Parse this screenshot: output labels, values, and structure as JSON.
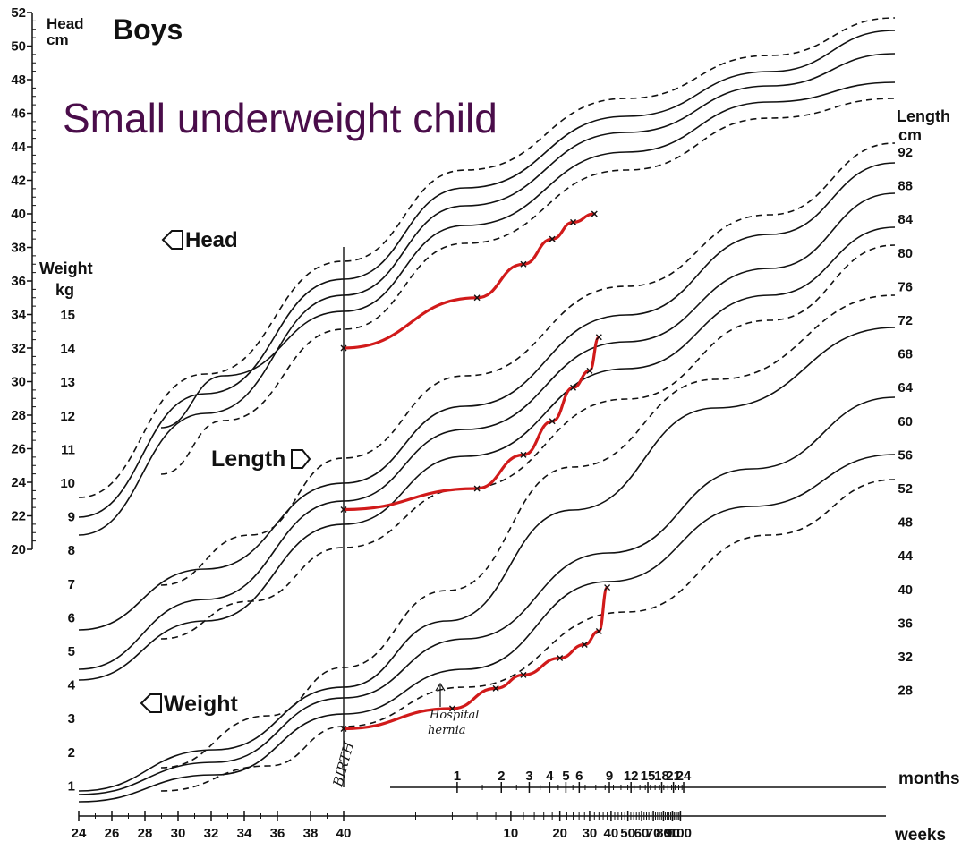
{
  "chart_data": {
    "type": "line",
    "title": "Small underweight child",
    "subtitle": "Boys",
    "left_head_axis": {
      "label_line1": "Head",
      "label_line2": "cm",
      "range": [
        20,
        52
      ],
      "ticks": [
        "52",
        "50",
        "48",
        "46",
        "44",
        "42",
        "40",
        "38",
        "36",
        "34",
        "32",
        "30",
        "28",
        "26",
        "24",
        "22",
        "20"
      ]
    },
    "left_weight_axis": {
      "label_line1": "Weight",
      "label_line2": "kg",
      "range": [
        1,
        15
      ],
      "ticks": [
        "15",
        "14",
        "13",
        "12",
        "11",
        "10",
        "9",
        "8",
        "7",
        "6",
        "5",
        "4",
        "3",
        "2",
        "1"
      ]
    },
    "right_length_axis": {
      "label_line1": "Length",
      "label_line2": "cm",
      "range": [
        28,
        92
      ],
      "ticks": [
        "92",
        "88",
        "84",
        "80",
        "76",
        "72",
        "68",
        "64",
        "60",
        "56",
        "52",
        "48",
        "44",
        "40",
        "36",
        "32",
        "28"
      ]
    },
    "x_weeks_axis": {
      "label": "weeks",
      "ticks": [
        "24",
        "26",
        "28",
        "30",
        "32",
        "34",
        "36",
        "38",
        "40",
        "10",
        "20",
        "30",
        "40",
        "50",
        "60",
        "70",
        "80",
        "90",
        "100"
      ]
    },
    "x_months_axis": {
      "label": "months",
      "ticks": [
        "1",
        "2",
        "3",
        "4",
        "5",
        "6",
        "9",
        "12",
        "15",
        "18",
        "21",
        "24"
      ]
    },
    "annotations": {
      "birth": "BIRTH",
      "head_label": "Head",
      "length_label": "Length",
      "weight_label": "Weight",
      "note_line1": "Hospital",
      "note_line2": "hernia"
    },
    "series": [
      {
        "name": "Head",
        "measure": "head circumference (cm)",
        "x_weeks_post_term": [
          0,
          6,
          12,
          18,
          24,
          32
        ],
        "y": [
          32,
          35,
          37,
          38.5,
          39.5,
          40
        ]
      },
      {
        "name": "Length",
        "measure": "length (cm)",
        "x_weeks_post_term": [
          0,
          6,
          12,
          18,
          24,
          30,
          34
        ],
        "y": [
          49.5,
          52,
          56,
          60,
          64,
          66,
          70
        ]
      },
      {
        "name": "Weight",
        "measure": "weight (kg)",
        "x_weeks_post_term": [
          0,
          4,
          8,
          12,
          20,
          28,
          34,
          38
        ],
        "y": [
          2.7,
          3.3,
          3.9,
          4.3,
          4.8,
          5.2,
          5.6,
          6.9
        ]
      }
    ],
    "colors": {
      "child_growth_line": "#d11a1a",
      "reference_lines": "#111111",
      "title": "#4a0d4a"
    }
  }
}
